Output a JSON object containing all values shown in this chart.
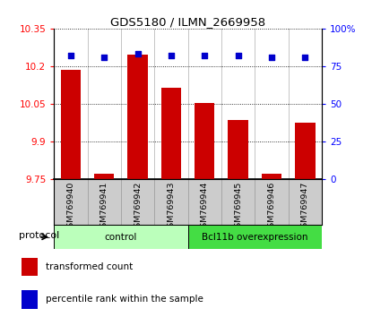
{
  "title": "GDS5180 / ILMN_2669958",
  "samples": [
    "GSM769940",
    "GSM769941",
    "GSM769942",
    "GSM769943",
    "GSM769944",
    "GSM769945",
    "GSM769946",
    "GSM769947"
  ],
  "transformed_counts": [
    10.185,
    9.77,
    10.245,
    10.115,
    10.055,
    9.985,
    9.77,
    9.975
  ],
  "percentile_ranks": [
    82,
    81,
    83,
    82,
    82,
    82,
    81,
    81
  ],
  "ylim_left": [
    9.75,
    10.35
  ],
  "ylim_right": [
    0,
    100
  ],
  "yticks_left": [
    9.75,
    9.9,
    10.05,
    10.2,
    10.35
  ],
  "yticks_right": [
    0,
    25,
    50,
    75,
    100
  ],
  "ytick_labels_left": [
    "9.75",
    "9.9",
    "10.05",
    "10.2",
    "10.35"
  ],
  "ytick_labels_right": [
    "0",
    "25",
    "50",
    "75",
    "100%"
  ],
  "bar_color": "#cc0000",
  "dot_color": "#0000cc",
  "bar_bottom": 9.75,
  "groups": [
    {
      "label": "control",
      "indices": [
        0,
        1,
        2,
        3
      ],
      "color": "#bbffbb"
    },
    {
      "label": "Bcl11b overexpression",
      "indices": [
        4,
        5,
        6,
        7
      ],
      "color": "#44dd44"
    }
  ],
  "protocol_label": "protocol",
  "legend_items": [
    {
      "label": "transformed count",
      "color": "#cc0000"
    },
    {
      "label": "percentile rank within the sample",
      "color": "#0000cc"
    }
  ],
  "bg_color": "#cccccc",
  "plot_bg": "#ffffff",
  "tick_area_bg": "#cccccc"
}
